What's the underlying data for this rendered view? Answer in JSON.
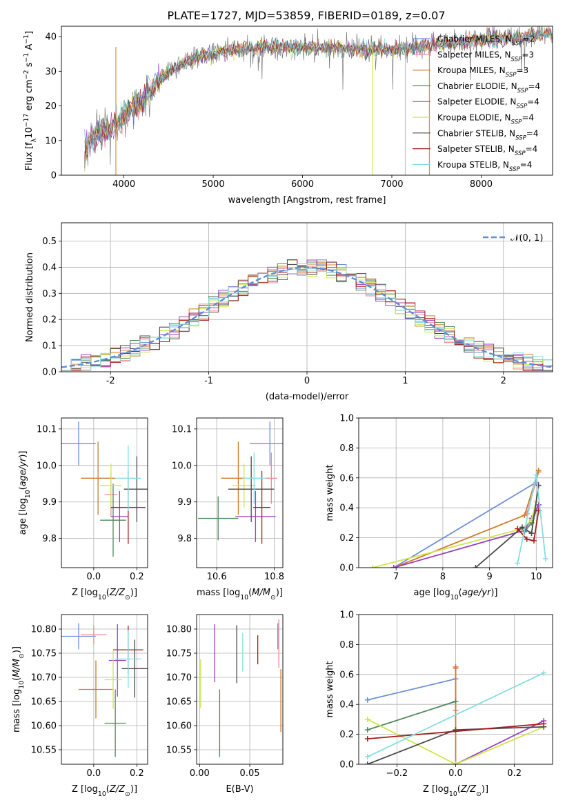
{
  "figure": {
    "title": "PLATE=1727, MJD=53859, FIBERID=0189, z=0.07"
  },
  "models": [
    {
      "name": "Chabrier MILES",
      "nssp": "2",
      "color": "#6b8fd9"
    },
    {
      "name": "Salpeter MILES",
      "nssp": "3",
      "color": "#f08a8a"
    },
    {
      "name": "Kroupa MILES",
      "nssp": "3",
      "color": "#d07a2a"
    },
    {
      "name": "Chabrier ELODIE",
      "nssp": "4",
      "color": "#4e8a5a"
    },
    {
      "name": "Salpeter ELODIE",
      "nssp": "4",
      "color": "#9a3fbf"
    },
    {
      "name": "Kroupa ELODIE",
      "nssp": "4",
      "color": "#cde64a"
    },
    {
      "name": "Chabrier STELIB",
      "nssp": "4",
      "color": "#4a4a4a"
    },
    {
      "name": "Salpeter STELIB",
      "nssp": "4",
      "color": "#a81c1c"
    },
    {
      "name": "Kroupa STELIB",
      "nssp": "4",
      "color": "#82dde3"
    }
  ],
  "chart_data": [
    {
      "id": "spectrum",
      "type": "line",
      "xlabel": "wavelength [Angstrom, rest frame]",
      "ylabel": "Flux [f_λ 10^-17 erg cm^-2 s^-1 A^-1]",
      "xlim": [
        3300,
        8800
      ],
      "ylim": [
        0,
        43
      ],
      "xticks": [
        4000,
        5000,
        6000,
        7000,
        8000
      ],
      "yticks": [
        0,
        10,
        20,
        30,
        40
      ],
      "spectrum_knots": [
        [
          3560,
          8
        ],
        [
          3700,
          12
        ],
        [
          3900,
          14
        ],
        [
          4000,
          17
        ],
        [
          4200,
          22
        ],
        [
          4500,
          30
        ],
        [
          4800,
          34
        ],
        [
          5200,
          36
        ],
        [
          5600,
          37
        ],
        [
          6000,
          37
        ],
        [
          6500,
          36.5
        ],
        [
          7000,
          36
        ],
        [
          7300,
          37
        ],
        [
          7600,
          38
        ],
        [
          8000,
          39
        ],
        [
          8500,
          40
        ],
        [
          8800,
          41
        ]
      ],
      "dropouts_x": [
        3910,
        6780,
        7150,
        7420
      ]
    },
    {
      "id": "residuals",
      "type": "histogram",
      "xlabel": "(data-model)/error",
      "ylabel": "Normed distribution",
      "xlim": [
        -2.5,
        2.5
      ],
      "ylim": [
        0,
        0.57
      ],
      "xticks": [
        -2,
        -1,
        0,
        1,
        2
      ],
      "yticks": [
        0,
        0.1,
        0.2,
        0.3,
        0.4,
        0.5
      ],
      "legend": "𝒩(0, 1)",
      "legend_position": "top-right",
      "bin_width": 0.1,
      "grid": true
    },
    {
      "id": "age-vs-Z",
      "type": "scatter",
      "xlabel": "Z [log10(Z/Z⊙)]",
      "ylabel": "age [log10(age/yr)]",
      "xlim": [
        -0.15,
        0.25
      ],
      "ylim": [
        9.72,
        10.13
      ],
      "xticks": [
        0.0,
        0.2
      ],
      "yticks": [
        9.8,
        9.9,
        10.0,
        10.1
      ],
      "points": [
        [
          -0.07,
          10.06,
          0.08,
          0.06
        ],
        [
          0.08,
          9.92,
          0.03,
          0.06
        ],
        [
          0.02,
          9.965,
          0.08,
          0.1
        ],
        [
          0.09,
          9.85,
          0.06,
          0.1
        ],
        [
          0.12,
          9.86,
          0.04,
          0.07
        ],
        [
          0.08,
          9.945,
          0.05,
          0.06
        ],
        [
          0.2,
          9.935,
          0.06,
          0.09
        ],
        [
          0.16,
          9.885,
          0.08,
          0.1
        ],
        [
          0.16,
          9.965,
          0.06,
          0.09
        ]
      ]
    },
    {
      "id": "age-vs-mass",
      "type": "scatter",
      "xlabel": "mass [log10(M/M⊙)]",
      "ylabel": "",
      "xlim": [
        10.53,
        10.83
      ],
      "ylim": [
        9.72,
        10.13
      ],
      "xticks": [
        10.6,
        10.8
      ],
      "yticks": [
        9.8,
        9.9,
        10.0,
        10.1
      ],
      "points": [
        [
          10.785,
          10.06,
          0.07,
          0.06
        ],
        [
          10.79,
          9.965,
          0.02,
          0.07
        ],
        [
          10.675,
          9.965,
          0.06,
          0.1
        ],
        [
          10.605,
          9.855,
          0.07,
          0.06
        ],
        [
          10.735,
          9.86,
          0.07,
          0.07
        ],
        [
          10.695,
          9.945,
          0.04,
          0.06
        ],
        [
          10.72,
          9.935,
          0.08,
          0.09
        ],
        [
          10.757,
          9.885,
          0.03,
          0.1
        ],
        [
          10.73,
          9.965,
          0.04,
          0.07
        ]
      ]
    },
    {
      "id": "weight-vs-age",
      "type": "line",
      "xlabel": "age [log10(age/yr)]",
      "ylabel": "mass weight",
      "xlim": [
        6.2,
        10.35
      ],
      "ylim": [
        0,
        1.0
      ],
      "xticks": [
        7,
        8,
        9,
        10
      ],
      "yticks": [
        0.0,
        0.2,
        0.4,
        0.6,
        0.8,
        1.0
      ],
      "series": [
        {
          "points": [
            [
              6.95,
              0.0
            ],
            [
              10.0,
              0.57
            ]
          ]
        },
        {
          "points": [
            [
              9.8,
              0.36
            ],
            [
              10.05,
              0.64
            ]
          ]
        },
        {
          "points": [
            [
              6.95,
              0.0
            ],
            [
              9.75,
              0.35
            ],
            [
              10.05,
              0.65
            ]
          ]
        },
        {
          "points": [
            [
              9.75,
              0.24
            ],
            [
              9.9,
              0.3
            ],
            [
              10.05,
              0.42
            ]
          ]
        },
        {
          "points": [
            [
              6.95,
              0.0
            ],
            [
              9.75,
              0.25
            ],
            [
              9.9,
              0.33
            ],
            [
              10.05,
              0.42
            ]
          ]
        },
        {
          "points": [
            [
              6.5,
              0.0
            ],
            [
              9.7,
              0.26
            ],
            [
              9.9,
              0.32
            ],
            [
              10.0,
              0.44
            ]
          ]
        },
        {
          "points": [
            [
              8.7,
              0.0
            ],
            [
              9.7,
              0.27
            ],
            [
              9.9,
              0.23
            ],
            [
              10.05,
              0.55
            ]
          ]
        },
        {
          "points": [
            [
              9.6,
              0.26
            ],
            [
              9.8,
              0.19
            ],
            [
              9.95,
              0.18
            ],
            [
              10.05,
              0.38
            ]
          ]
        },
        {
          "points": [
            [
              9.6,
              0.03
            ],
            [
              10.0,
              0.62
            ],
            [
              10.2,
              0.06
            ]
          ]
        }
      ]
    },
    {
      "id": "mass-vs-Z",
      "type": "scatter",
      "xlabel": "Z [log10(Z/Z⊙)]",
      "ylabel": "mass [log10(M/M⊙)]",
      "xlim": [
        -0.15,
        0.25
      ],
      "ylim": [
        10.52,
        10.83
      ],
      "xticks": [
        0.0,
        0.2
      ],
      "yticks": [
        10.55,
        10.6,
        10.65,
        10.7,
        10.75,
        10.8
      ],
      "points": [
        [
          -0.07,
          10.785,
          0.08,
          0.027
        ],
        [
          0.0,
          10.788,
          0.06,
          0.02
        ],
        [
          0.01,
          10.675,
          0.08,
          0.06
        ],
        [
          0.1,
          10.605,
          0.05,
          0.07
        ],
        [
          0.11,
          10.735,
          0.04,
          0.075
        ],
        [
          0.09,
          10.695,
          0.04,
          0.06
        ],
        [
          0.19,
          10.718,
          0.06,
          0.06
        ],
        [
          0.16,
          10.757,
          0.07,
          0.05
        ],
        [
          0.16,
          10.738,
          0.06,
          0.06
        ]
      ]
    },
    {
      "id": "mass-vs-ebv",
      "type": "scatter",
      "xlabel": "E(B-V)",
      "ylabel": "",
      "xlim": [
        -0.003,
        0.083
      ],
      "ylim": [
        10.52,
        10.83
      ],
      "xticks": [
        0.0,
        0.05
      ],
      "yticks": [
        10.55,
        10.6,
        10.65,
        10.7,
        10.75,
        10.8
      ],
      "points": [
        [
          0.078,
          10.785,
          0.0,
          0.027
        ],
        [
          0.079,
          10.77,
          0.0,
          0.05
        ],
        [
          0.081,
          10.652,
          0.0,
          0.065
        ],
        [
          0.02,
          10.605,
          0.0,
          0.07
        ],
        [
          0.015,
          10.75,
          0.0,
          0.06
        ],
        [
          0.001,
          10.687,
          0.0,
          0.05
        ],
        [
          0.037,
          10.748,
          0.0,
          0.06
        ],
        [
          0.058,
          10.757,
          0.0,
          0.03
        ],
        [
          0.043,
          10.752,
          0.0,
          0.04
        ]
      ]
    },
    {
      "id": "weight-vs-Z",
      "type": "line",
      "xlabel": "Z [log10(Z/Z⊙)]",
      "ylabel": "mass weight",
      "xlim": [
        -0.33,
        0.33
      ],
      "ylim": [
        0,
        1.0
      ],
      "xticks": [
        -0.2,
        0.0,
        0.2
      ],
      "yticks": [
        0.0,
        0.2,
        0.4,
        0.6,
        0.8,
        1.0
      ],
      "series": [
        {
          "points": [
            [
              -0.3,
              0.43
            ],
            [
              0.0,
              0.57
            ]
          ]
        },
        {
          "points": [
            [
              0.0,
              0.36
            ],
            [
              0.0,
              0.64
            ]
          ]
        },
        {
          "points": [
            [
              0.0,
              0.0
            ],
            [
              0.0,
              0.65
            ]
          ]
        },
        {
          "points": [
            [
              -0.3,
              0.23
            ],
            [
              0.0,
              0.42
            ]
          ]
        },
        {
          "points": [
            [
              0.0,
              0.0
            ],
            [
              0.3,
              0.29
            ]
          ]
        },
        {
          "points": [
            [
              -0.3,
              0.3
            ],
            [
              0.0,
              0.0
            ],
            [
              0.3,
              0.25
            ]
          ]
        },
        {
          "points": [
            [
              -0.3,
              0.0
            ],
            [
              0.0,
              0.23
            ],
            [
              0.3,
              0.25
            ]
          ]
        },
        {
          "points": [
            [
              -0.3,
              0.17
            ],
            [
              0.3,
              0.27
            ]
          ]
        },
        {
          "points": [
            [
              -0.3,
              0.05
            ],
            [
              0.3,
              0.61
            ]
          ]
        }
      ]
    }
  ]
}
